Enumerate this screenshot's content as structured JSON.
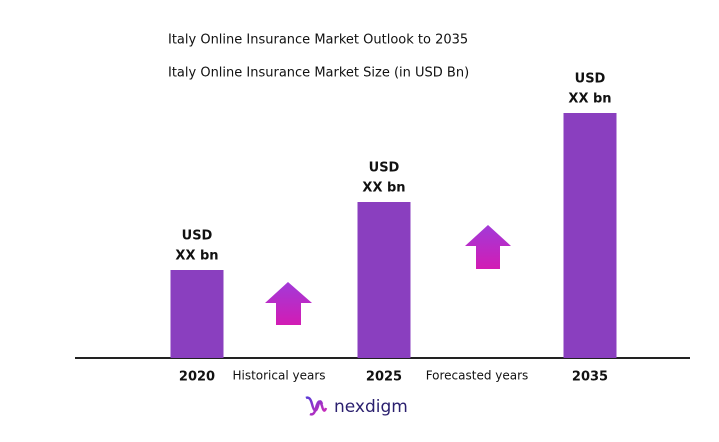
{
  "chart_data": {
    "type": "bar",
    "title": "Italy Online Insurance Market Outlook to 2035",
    "subtitle": "Italy Online Insurance Market Size (in USD Bn)",
    "categories": [
      "2020",
      "2025",
      "2035"
    ],
    "values": [
      88,
      156,
      245
    ],
    "value_labels": [
      [
        "USD",
        "XX bn"
      ],
      [
        "USD",
        "XX bn"
      ],
      [
        "USD",
        "XX bn"
      ]
    ],
    "color": "#8a3fbf",
    "ylim": [
      0,
      250
    ],
    "annotations": [
      "Historical years",
      "Forecasted years"
    ],
    "logo": "nexdigm"
  }
}
